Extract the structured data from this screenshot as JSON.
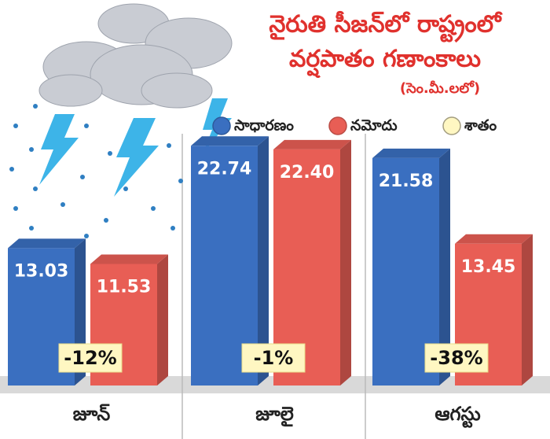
{
  "chart_data": {
    "type": "bar",
    "title": "నైరుతి సీజన్‌లో రాష్ట్రంలో",
    "title2": "వర్షపాతం గణాంకాలు",
    "subtitle": "(సెం.మీ.లలో)",
    "categories": [
      "జూన్",
      "జూలై",
      "ఆగస్టు"
    ],
    "series": [
      {
        "name": "సాధారణం",
        "color": "#3a6fc0",
        "values": [
          13.03,
          22.74,
          21.58
        ]
      },
      {
        "name": "నమోదు",
        "color": "#e85e55",
        "values": [
          11.53,
          22.4,
          13.45
        ],
        "value_labels": [
          "11.53",
          "22.40",
          "13.45"
        ]
      }
    ],
    "percent": {
      "name": "శాతం",
      "color": "#fff7c2",
      "values": [
        -12,
        -1,
        -38
      ],
      "value_labels": [
        "-12%",
        "-1%",
        "-38%"
      ]
    }
  }
}
